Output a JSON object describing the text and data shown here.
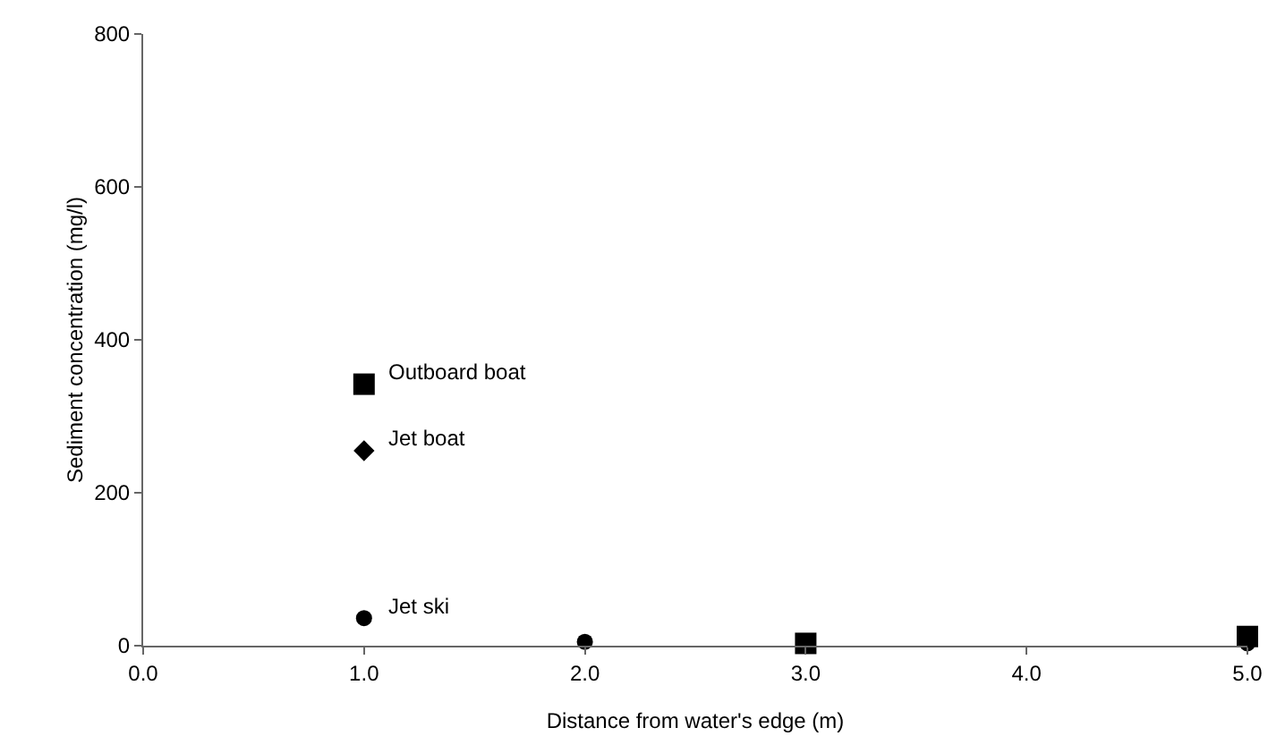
{
  "chart_data": {
    "type": "scatter",
    "xlabel": "Distance from water's edge (m)",
    "ylabel": "Sediment concentration (mg/l)",
    "x": [
      1,
      2,
      3,
      5
    ],
    "series": [
      {
        "name": "Outboard boat",
        "color": "#000000",
        "marker": "square",
        "values": [
          342,
          null,
          3,
          12
        ]
      },
      {
        "name": "Jet boat",
        "color": "#000000",
        "marker": "diamond",
        "values": [
          255,
          null,
          null,
          null
        ]
      },
      {
        "name": "Jet ski",
        "color": "#000000",
        "marker": "circle",
        "values": [
          36,
          5,
          null,
          3
        ]
      }
    ],
    "xlim": [
      0,
      5
    ],
    "xticks": [
      {
        "value": 0,
        "label": "0.0"
      },
      {
        "value": 1,
        "label": "1.0"
      },
      {
        "value": 2,
        "label": "2.0"
      },
      {
        "value": 3,
        "label": "3.0"
      },
      {
        "value": 4,
        "label": "4.0"
      },
      {
        "value": 5,
        "label": "5.0"
      }
    ],
    "ylim": [
      0,
      800
    ],
    "yticks": [
      0,
      200,
      400,
      600,
      800
    ],
    "grid": false,
    "legend": false
  }
}
